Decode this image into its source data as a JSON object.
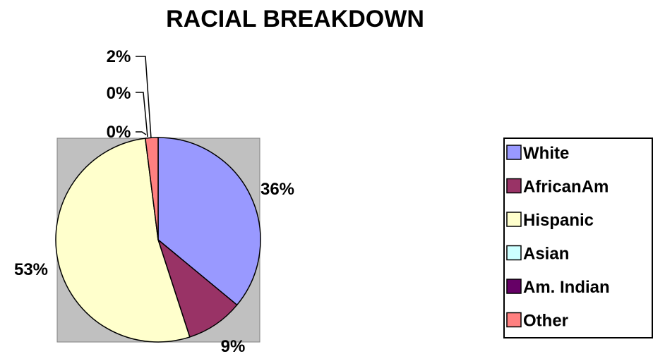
{
  "chart_data": {
    "type": "pie",
    "title": "RACIAL BREAKDOWN",
    "categories": [
      "White",
      "AfricanAm",
      "Hispanic",
      "Asian",
      "Am. Indian",
      "Other"
    ],
    "values": [
      36,
      9,
      53,
      0,
      0,
      2
    ],
    "data_labels": [
      "36%",
      "9%",
      "53%",
      "0%",
      "0%",
      "2%"
    ],
    "colors": [
      "#9999FF",
      "#993366",
      "#FFFFCC",
      "#CCFFFF",
      "#660066",
      "#FF8080"
    ],
    "plot_background": "#C0C0C0",
    "legend": {
      "position": "right",
      "entries": [
        "White",
        "AfricanAm",
        "Hispanic",
        "Asian",
        "Am. Indian",
        "Other"
      ]
    }
  }
}
